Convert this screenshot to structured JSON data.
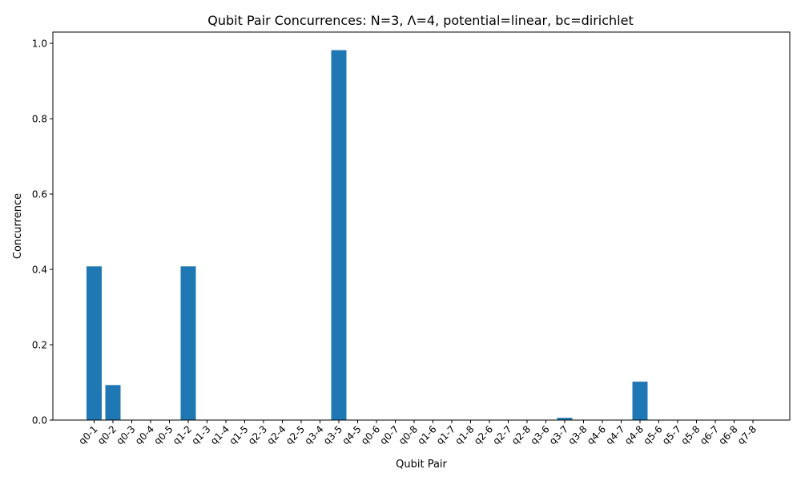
{
  "chart_data": {
    "type": "bar",
    "title": "Qubit Pair Concurrences: N=3, Λ=4, potential=linear, bc=dirichlet",
    "xlabel": "Qubit Pair",
    "ylabel": "Concurrence",
    "ylim": [
      0,
      1.03
    ],
    "yticks": [
      "0.0",
      "0.2",
      "0.4",
      "0.6",
      "0.8",
      "1.0"
    ],
    "grid": false,
    "bar_color": "#1f77b4",
    "categories": [
      "q0-1",
      "q0-2",
      "q0-3",
      "q0-4",
      "q0-5",
      "q1-2",
      "q1-3",
      "q1-4",
      "q1-5",
      "q2-3",
      "q2-4",
      "q2-5",
      "q3-4",
      "q3-5",
      "q4-5",
      "q0-6",
      "q0-7",
      "q0-8",
      "q1-6",
      "q1-7",
      "q1-8",
      "q2-6",
      "q2-7",
      "q2-8",
      "q3-6",
      "q3-7",
      "q3-8",
      "q4-6",
      "q4-7",
      "q4-8",
      "q5-6",
      "q5-7",
      "q5-8",
      "q6-7",
      "q6-8",
      "q7-8"
    ],
    "values": [
      0.408,
      0.093,
      0,
      0,
      0,
      0.408,
      0,
      0,
      0,
      0,
      0,
      0,
      0,
      0.982,
      0,
      0,
      0,
      0,
      0,
      0,
      0,
      0,
      0,
      0,
      0,
      0.006,
      0,
      0,
      0,
      0.102,
      0,
      0,
      0,
      0,
      0,
      0
    ]
  }
}
